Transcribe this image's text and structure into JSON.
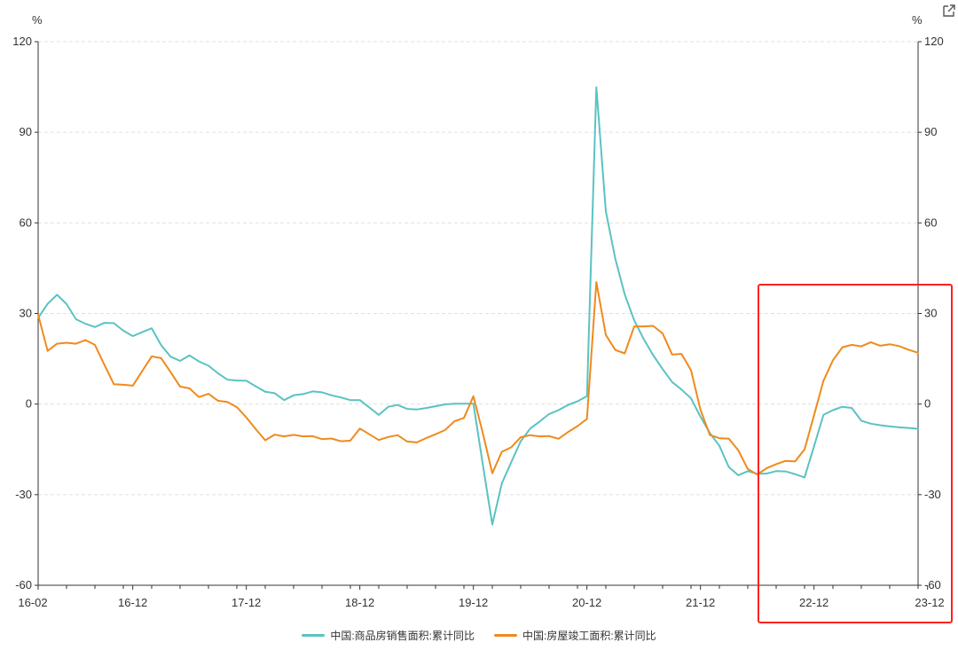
{
  "chart_data": {
    "type": "line",
    "title": "",
    "y_unit_left": "%",
    "y_unit_right": "%",
    "ylim": [
      -60,
      120
    ],
    "y_ticks": [
      120,
      90,
      60,
      30,
      0,
      -30,
      -60
    ],
    "grid": true,
    "legend_position": "bottom",
    "x_tick_labels": [
      "16-02",
      "16-12",
      "17-12",
      "18-12",
      "19-12",
      "20-12",
      "21-12",
      "22-12",
      "23-12"
    ],
    "x_tick_index": [
      0,
      10,
      22,
      34,
      46,
      58,
      70,
      82,
      94
    ],
    "series": [
      {
        "name": "中国:商品房销售面积:累计同比",
        "color": "#5bc2c2",
        "values": [
          28.5,
          33.2,
          36.2,
          33.1,
          28.1,
          26.6,
          25.5,
          26.9,
          26.8,
          24.3,
          22.5,
          23.8,
          25.1,
          19.5,
          15.7,
          14.3,
          16.1,
          14.1,
          12.7,
          10.2,
          8.1,
          7.8,
          7.7,
          5.9,
          4.1,
          3.6,
          1.3,
          2.9,
          3.3,
          4.2,
          3.9,
          2.9,
          2.2,
          1.3,
          1.3,
          -1.1,
          -3.6,
          -0.9,
          -0.3,
          -1.6,
          -1.8,
          -1.3,
          -0.7,
          -0.1,
          0.1,
          0.1,
          0.1,
          -20.0,
          -39.9,
          -26.3,
          -19.3,
          -12.3,
          -8.1,
          -5.8,
          -3.3,
          -2.0,
          -0.3,
          0.9,
          2.6,
          104.9,
          63.8,
          48.1,
          36.3,
          27.7,
          21.5,
          16.2,
          11.6,
          7.3,
          4.8,
          1.9,
          -4.2,
          -9.6,
          -13.8,
          -20.9,
          -23.6,
          -22.2,
          -23.1,
          -23.0,
          -22.2,
          -22.3,
          -23.2,
          -24.3,
          -14.0,
          -3.6,
          -2.0,
          -0.9,
          -1.3,
          -5.5,
          -6.5,
          -7.0,
          -7.4,
          -7.7,
          -7.9,
          -8.2
        ]
      },
      {
        "name": "中国:房屋竣工面积:累计同比",
        "color": "#f08a1c",
        "values": [
          29.6,
          17.6,
          20.0,
          20.3,
          20.0,
          21.2,
          19.6,
          13.0,
          6.6,
          6.4,
          6.1,
          10.9,
          15.8,
          15.2,
          10.6,
          5.8,
          5.2,
          2.3,
          3.4,
          1.1,
          0.7,
          -1.0,
          -4.4,
          -8.3,
          -12.0,
          -10.1,
          -10.7,
          -10.2,
          -10.7,
          -10.6,
          -11.6,
          -11.4,
          -12.3,
          -12.1,
          -8.1,
          -10.0,
          -11.9,
          -10.9,
          -10.3,
          -12.4,
          -12.7,
          -11.3,
          -10.0,
          -8.6,
          -5.7,
          -4.6,
          2.6,
          -9.6,
          -22.9,
          -15.8,
          -14.3,
          -11.0,
          -10.3,
          -10.7,
          -10.6,
          -11.5,
          -9.3,
          -7.3,
          -4.9,
          40.4,
          22.9,
          17.9,
          16.8,
          25.7,
          25.7,
          25.9,
          23.4,
          16.4,
          16.6,
          11.2,
          -1.9,
          -10.3,
          -11.3,
          -11.5,
          -15.3,
          -21.5,
          -23.3,
          -21.2,
          -19.9,
          -18.8,
          -19.0,
          -15.0,
          -3.7,
          7.7,
          14.5,
          18.8,
          19.6,
          19.1,
          20.5,
          19.3,
          19.8,
          19.2,
          18.0,
          17.0
        ]
      }
    ]
  },
  "legend": {
    "item1": "中国:商品房销售面积:累计同比",
    "item2": "中国:房屋竣工面积:累计同比"
  },
  "colors": {
    "series1": "#5bc2c2",
    "series2": "#f08a1c",
    "highlight_box": "#ff2020",
    "axis": "#333333",
    "grid": "#e0e0e0"
  },
  "icons": {
    "export": "external-link-icon"
  }
}
